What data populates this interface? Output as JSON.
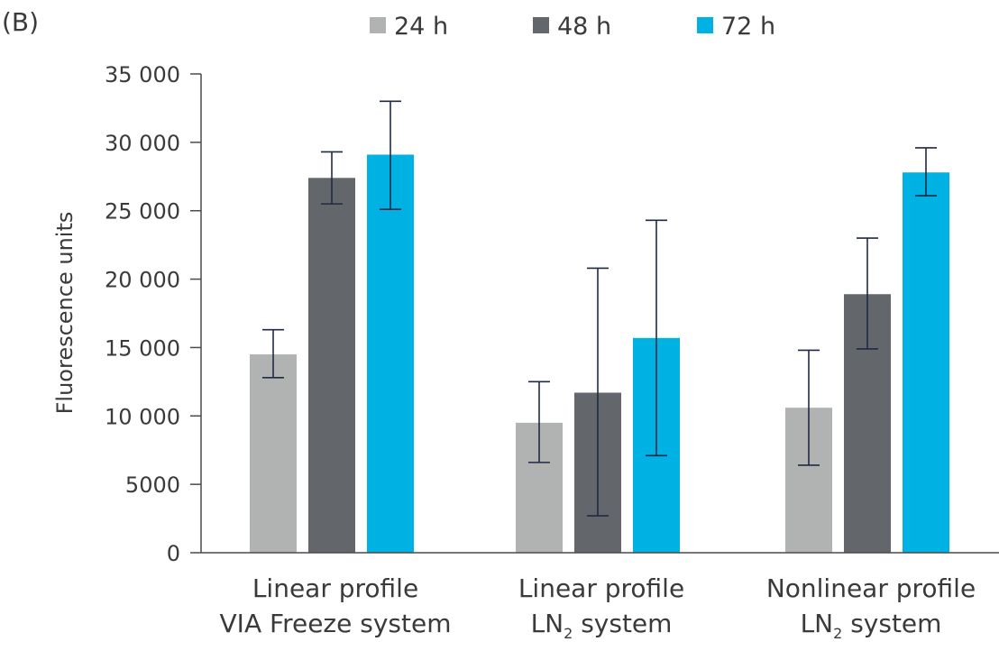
{
  "panel_label": "(B)",
  "chart_data": {
    "type": "bar",
    "title": "",
    "ylabel": "Fluorescence units",
    "xlabel": "",
    "ylim": [
      0,
      35000
    ],
    "yticks": [
      0,
      5000,
      10000,
      15000,
      20000,
      25000,
      30000,
      35000
    ],
    "ytick_labels": [
      "0",
      "5000",
      "10 000",
      "15 000",
      "20 000",
      "25 000",
      "30 000",
      "35 000"
    ],
    "grid": false,
    "legend_position": "top-center",
    "categories": [
      {
        "line1": "Linear profile",
        "line2_main": "VIA Freeze system",
        "line2_sub": "",
        "line2_tail": ""
      },
      {
        "line1": "Linear profile",
        "line2_main": "LN",
        "line2_sub": "2",
        "line2_tail": " system"
      },
      {
        "line1": "Nonlinear profile",
        "line2_main": "LN",
        "line2_sub": "2",
        "line2_tail": " system"
      }
    ],
    "series": [
      {
        "name": "24 h",
        "color": "#b1b3b3",
        "values": [
          14500,
          9500,
          10600
        ],
        "err_low": [
          12800,
          6600,
          6400
        ],
        "err_high": [
          16300,
          12500,
          14800
        ]
      },
      {
        "name": "48 h",
        "color": "#63666a",
        "values": [
          27400,
          11700,
          18900
        ],
        "err_low": [
          25500,
          2700,
          14900
        ],
        "err_high": [
          29300,
          20800,
          23000
        ]
      },
      {
        "name": "72 h",
        "color": "#00b2e3",
        "values": [
          29100,
          15700,
          27800
        ],
        "err_low": [
          25100,
          7100,
          26100
        ],
        "err_high": [
          33000,
          24300,
          29600
        ]
      }
    ],
    "error_bar_color": "#1f2a44",
    "axis_color": "#4a4a4a"
  }
}
